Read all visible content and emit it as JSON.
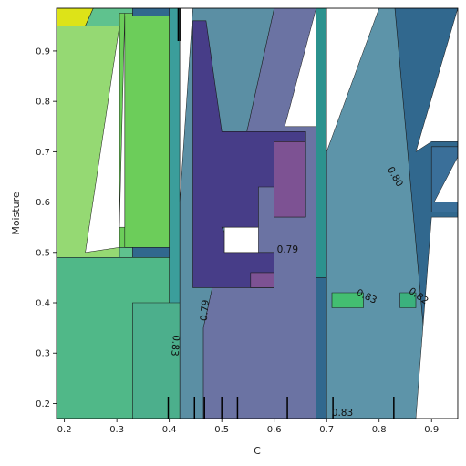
{
  "chart_data": {
    "type": "contour",
    "title": "",
    "xlabel": "C",
    "ylabel": "Moisture",
    "xlim": [
      0.185,
      0.95
    ],
    "ylim": [
      0.17,
      0.985
    ],
    "xticks": [
      0.2,
      0.3,
      0.4,
      0.5,
      0.6,
      0.7,
      0.8,
      0.9
    ],
    "yticks": [
      0.2,
      0.3,
      0.4,
      0.5,
      0.6,
      0.7,
      0.8,
      0.9
    ],
    "grid": false,
    "colormap": "viridis",
    "regions": [
      {
        "level": 0.77,
        "color": "#31688e",
        "points": [
          [
            0.185,
            0.17
          ],
          [
            0.95,
            0.17
          ],
          [
            0.95,
            0.985
          ],
          [
            0.185,
            0.985
          ]
        ]
      },
      {
        "level": 0.81,
        "color": "#5fc28e",
        "points": [
          [
            0.185,
            0.17
          ],
          [
            0.33,
            0.17
          ],
          [
            0.33,
            0.985
          ],
          [
            0.185,
            0.985
          ]
        ]
      },
      {
        "level": 0.84,
        "color": "#95d973",
        "points": [
          [
            0.185,
            0.49
          ],
          [
            0.305,
            0.49
          ],
          [
            0.305,
            0.95
          ],
          [
            0.185,
            0.95
          ]
        ]
      },
      {
        "level": 0.86,
        "color": "#6ccd5a",
        "points": [
          [
            0.305,
            0.51
          ],
          [
            0.33,
            0.51
          ],
          [
            0.33,
            0.975
          ],
          [
            0.305,
            0.975
          ]
        ]
      },
      {
        "level": 0.86,
        "color": "#6ccd5a",
        "points": [
          [
            0.315,
            0.51
          ],
          [
            0.4,
            0.51
          ],
          [
            0.4,
            0.97
          ],
          [
            0.315,
            0.97
          ]
        ]
      },
      {
        "level": 0.82,
        "color": "#50b888",
        "points": [
          [
            0.185,
            0.17
          ],
          [
            0.42,
            0.17
          ],
          [
            0.42,
            0.49
          ],
          [
            0.185,
            0.49
          ]
        ]
      },
      {
        "level": 0.9,
        "color": "#dde318",
        "points": [
          [
            0.185,
            0.95
          ],
          [
            0.24,
            0.95
          ],
          [
            0.255,
            0.985
          ],
          [
            0.185,
            0.985
          ]
        ]
      },
      {
        "level": 0.8,
        "color": "#3b9e9b",
        "points": [
          [
            0.4,
            0.17
          ],
          [
            0.42,
            0.17
          ],
          [
            0.42,
            0.985
          ],
          [
            0.4,
            0.985
          ]
        ]
      },
      {
        "level": 0.81,
        "color": "#4caf8c",
        "points": [
          [
            0.33,
            0.17
          ],
          [
            0.42,
            0.17
          ],
          [
            0.42,
            0.4
          ],
          [
            0.33,
            0.4
          ]
        ]
      },
      {
        "level": 0.79,
        "color": "#5b8fa4",
        "points": [
          [
            0.42,
            0.17
          ],
          [
            0.68,
            0.17
          ],
          [
            0.68,
            0.985
          ],
          [
            0.42,
            0.985
          ]
        ]
      },
      {
        "level": 0.76,
        "color": "#6b73a3",
        "points": [
          [
            0.465,
            0.17
          ],
          [
            0.68,
            0.17
          ],
          [
            0.68,
            0.985
          ],
          [
            0.6,
            0.985
          ],
          [
            0.465,
            0.35
          ]
        ]
      },
      {
        "level": 0.74,
        "color": "#473d88",
        "points": [
          [
            0.445,
            0.43
          ],
          [
            0.6,
            0.43
          ],
          [
            0.6,
            0.5
          ],
          [
            0.505,
            0.5
          ],
          [
            0.505,
            0.54
          ],
          [
            0.5,
            0.55
          ],
          [
            0.57,
            0.55
          ],
          [
            0.57,
            0.63
          ],
          [
            0.66,
            0.63
          ],
          [
            0.66,
            0.74
          ],
          [
            0.5,
            0.74
          ],
          [
            0.47,
            0.96
          ],
          [
            0.445,
            0.96
          ]
        ]
      },
      {
        "level": 0.75,
        "color": "#7d5293",
        "points": [
          [
            0.555,
            0.43
          ],
          [
            0.6,
            0.43
          ],
          [
            0.6,
            0.46
          ],
          [
            0.555,
            0.46
          ]
        ]
      },
      {
        "level": 0.75,
        "color": "#7d5293",
        "points": [
          [
            0.6,
            0.57
          ],
          [
            0.66,
            0.57
          ],
          [
            0.66,
            0.72
          ],
          [
            0.6,
            0.72
          ]
        ]
      },
      {
        "level": 0.8,
        "color": "#2c928e",
        "points": [
          [
            0.68,
            0.45
          ],
          [
            0.7,
            0.45
          ],
          [
            0.7,
            0.985
          ],
          [
            0.68,
            0.985
          ]
        ]
      },
      {
        "level": 0.81,
        "color": "#5d94a9",
        "points": [
          [
            0.7,
            0.17
          ],
          [
            0.9,
            0.17
          ],
          [
            0.83,
            0.985
          ],
          [
            0.7,
            0.985
          ]
        ]
      },
      {
        "level": 0.78,
        "color": "#3a6f99",
        "points": [
          [
            0.9,
            0.58
          ],
          [
            0.95,
            0.58
          ],
          [
            0.95,
            0.71
          ],
          [
            0.9,
            0.71
          ]
        ]
      },
      {
        "level": 0.84,
        "color": "#43be71",
        "points": [
          [
            0.71,
            0.39
          ],
          [
            0.77,
            0.39
          ],
          [
            0.77,
            0.42
          ],
          [
            0.71,
            0.42
          ]
        ]
      },
      {
        "level": 0.83,
        "color": "#3bb17d",
        "points": [
          [
            0.84,
            0.39
          ],
          [
            0.87,
            0.39
          ],
          [
            0.87,
            0.42
          ],
          [
            0.84,
            0.42
          ]
        ]
      }
    ],
    "contour_labels": [
      {
        "text": "0.79",
        "x": 0.6255,
        "y": 0.505,
        "rotation": 0
      },
      {
        "text": "0.79",
        "x": 0.468,
        "y": 0.385,
        "rotation": -85
      },
      {
        "text": "0.83",
        "x": 0.411,
        "y": 0.315,
        "rotation": 95
      },
      {
        "text": "0.83",
        "x": 0.776,
        "y": 0.412,
        "rotation": 25
      },
      {
        "text": "0.82",
        "x": 0.875,
        "y": 0.413,
        "rotation": 35
      },
      {
        "text": "0.80",
        "x": 0.83,
        "y": 0.65,
        "rotation": 60
      },
      {
        "text": "0.83",
        "x": 0.73,
        "y": 0.181,
        "rotation": 0
      }
    ],
    "rug_x": [
      0.398,
      0.448,
      0.467,
      0.5,
      0.53,
      0.625,
      0.712,
      0.828
    ],
    "top_ticks_x": [
      0.417,
      0.42
    ]
  }
}
